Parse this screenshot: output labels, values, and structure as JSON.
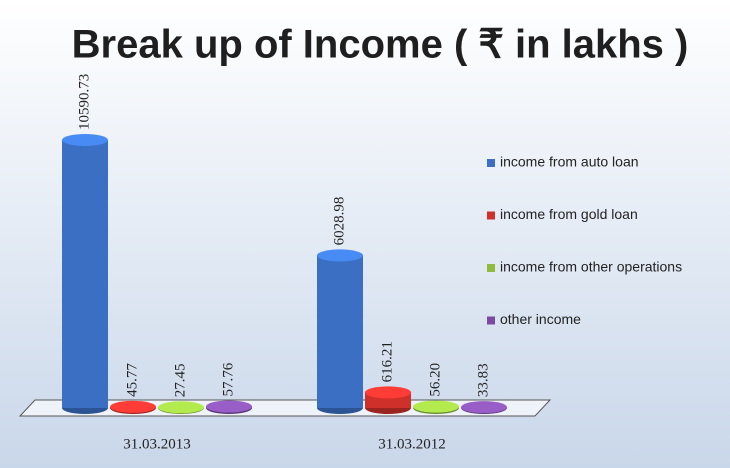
{
  "chart_data": {
    "type": "bar3d",
    "title": "Break up of Income ( ₹ in lakhs )",
    "categories": [
      "31.03.2013",
      "31.03.2012"
    ],
    "series": [
      {
        "name": "income from auto loan",
        "color": "#3a6fc4",
        "values": [
          10590.73,
          6028.98
        ],
        "value_labels": [
          "10590.73",
          "6028.98"
        ]
      },
      {
        "name": "income from gold loan",
        "color": "#d0302a",
        "values": [
          45.77,
          616.21
        ],
        "value_labels": [
          "45.77",
          "616.21"
        ]
      },
      {
        "name": "income from other operations",
        "color": "#8fbc3f",
        "values": [
          27.45,
          56.2
        ],
        "value_labels": [
          "27.45",
          "56.20"
        ]
      },
      {
        "name": "other income",
        "color": "#7a4aa0",
        "values": [
          57.76,
          33.83
        ],
        "value_labels": [
          "57.76",
          "33.83"
        ]
      }
    ],
    "legend": "right"
  }
}
